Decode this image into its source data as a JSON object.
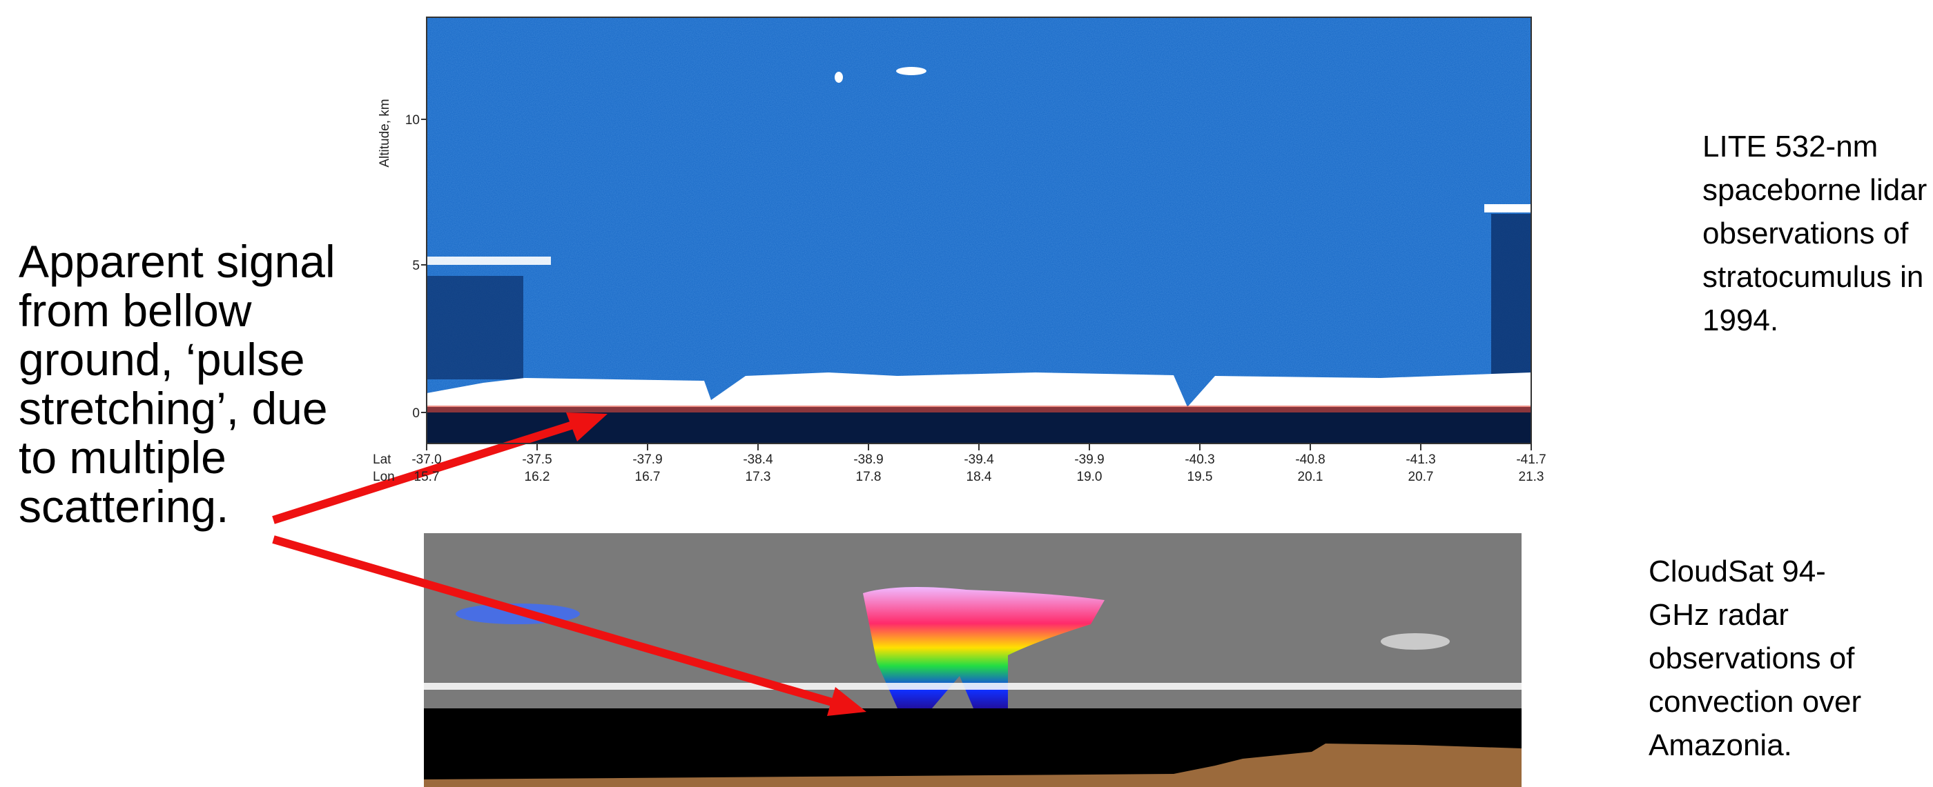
{
  "left_annotation": {
    "lines": [
      "Apparent signal",
      "from bellow",
      "ground, ‘pulse",
      "stretching’, due",
      "to multiple",
      "scattering."
    ]
  },
  "lidar_caption": {
    "lines": [
      "LITE 532-nm",
      "spaceborne lidar",
      "observations of",
      "stratocumulus in",
      "1994."
    ]
  },
  "radar_caption": {
    "lines": [
      "CloudSat 94-",
      "GHz radar",
      "observations of",
      "convection over",
      "Amazonia."
    ]
  },
  "lidar_plot": {
    "y_axis_label": "Altitude, km",
    "y_tick_labels": [
      "0",
      "5",
      "10"
    ],
    "lat_label": "Lat",
    "lon_label": "Lon",
    "lat_ticks": [
      "-37.0",
      "-37.5",
      "-37.9",
      "-38.4",
      "-38.9",
      "-39.4",
      "-39.9",
      "-40.3",
      "-40.8",
      "-41.3",
      "-41.7"
    ],
    "lon_ticks": [
      "15.7",
      "16.2",
      "16.7",
      "17.3",
      "17.8",
      "18.4",
      "19.0",
      "19.5",
      "20.1",
      "20.7",
      "21.3"
    ]
  }
}
